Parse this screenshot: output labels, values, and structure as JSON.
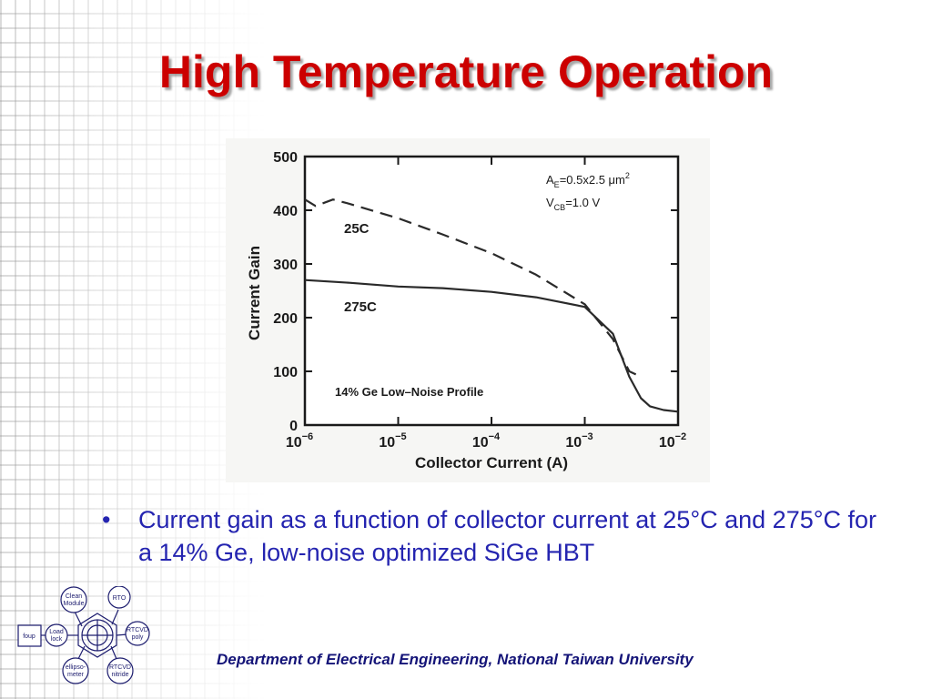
{
  "slide": {
    "title": "High Temperature Operation",
    "bullet_symbol": "•",
    "bullet": "Current gain as a function of collector current at 25°C and 275°C for a 14% Ge, low-noise optimized SiGe HBT",
    "footer": "Department of Electrical Engineering, National Taiwan University",
    "colors": {
      "title": "#cc0000",
      "bullet": "#2424b0",
      "footer": "#141478"
    }
  },
  "logo": {
    "nodes": {
      "clean_module": [
        "Clean",
        "Module"
      ],
      "rto": "RTO",
      "rtcvd_poly": [
        "RTCVD",
        "poly"
      ],
      "load_lock": [
        "Load",
        "lock"
      ],
      "foup": "foup",
      "ellipsometer": [
        "ellipso-",
        "meter"
      ],
      "rtcvd_nitride": [
        "RTCVD",
        "nitride"
      ]
    }
  },
  "chart_data": {
    "type": "line",
    "x_scale": "log",
    "xlim": [
      1e-06,
      0.01
    ],
    "ylim": [
      0,
      500
    ],
    "xlabel": "Collector Current (A)",
    "ylabel": "Current Gain",
    "x_ticks": [
      1e-06,
      1e-05,
      0.0001,
      0.001,
      0.01
    ],
    "x_tick_labels": [
      {
        "base": "10",
        "exp": "−6"
      },
      {
        "base": "10",
        "exp": "−5"
      },
      {
        "base": "10",
        "exp": "−4"
      },
      {
        "base": "10",
        "exp": "−3"
      },
      {
        "base": "10",
        "exp": "−2"
      }
    ],
    "y_ticks": [
      0,
      100,
      200,
      300,
      400,
      500
    ],
    "y_tick_labels": [
      "0",
      "100",
      "200",
      "300",
      "400",
      "500"
    ],
    "annotations": {
      "ae": {
        "main": "A",
        "sub": "E",
        "rest": "=0.5x2.5 μm",
        "sup": "2"
      },
      "vcb": {
        "main": "V",
        "sub": "CB",
        "rest": "=1.0 V"
      },
      "profile": "14% Ge Low–Noise Profile"
    },
    "grid": false,
    "series": [
      {
        "name": "25C",
        "style": "dashed",
        "x": [
          1e-06,
          1.3e-06,
          2e-06,
          3e-06,
          1e-05,
          3e-05,
          0.0001,
          0.0003,
          0.001,
          0.002,
          0.003,
          0.004
        ],
        "y": [
          420,
          408,
          420,
          412,
          385,
          355,
          320,
          280,
          225,
          160,
          100,
          90
        ]
      },
      {
        "name": "275C",
        "style": "solid",
        "x": [
          1e-06,
          3e-06,
          1e-05,
          3e-05,
          0.0001,
          0.0003,
          0.001,
          0.002,
          0.003,
          0.004,
          0.005,
          0.007,
          0.01
        ],
        "y": [
          270,
          265,
          258,
          255,
          248,
          238,
          220,
          170,
          90,
          50,
          35,
          28,
          25
        ]
      }
    ]
  }
}
